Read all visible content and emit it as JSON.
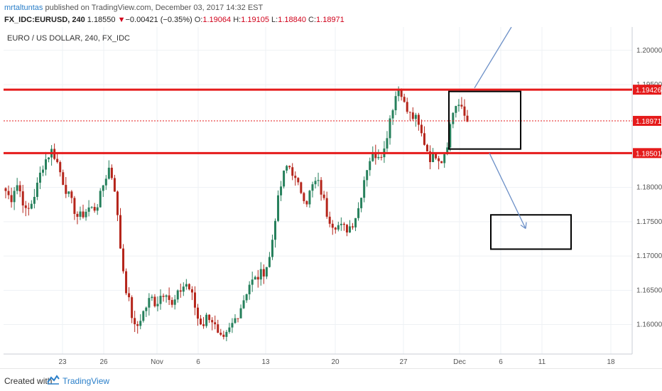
{
  "header": {
    "username": "mrtaltuntas",
    "published_text": " published on TradingView.com, December 03, 2017 14:32 EST",
    "symbol": "FX_IDC:EURUSD, 240",
    "price": "1.18550",
    "change_arrow": "▼",
    "change": "−0.00421 (−0.35%)",
    "open_label": "O:",
    "open": "1.19064",
    "high_label": "H:",
    "high": "1.19105",
    "low_label": "L:",
    "low": "1.18840",
    "close_label": "C:",
    "close": "1.18971"
  },
  "instrument_label": "EURO / US DOLLAR, 240, FX_IDC",
  "footer": {
    "created_with": "Created with",
    "brand": "TradingView"
  },
  "colors": {
    "up": "#26805c",
    "down": "#b5251b",
    "hline": "#e51b1b",
    "annotation": "#6b8fc7",
    "box": "#000000",
    "grid": "#eef1f4"
  },
  "chart_data": {
    "type": "candlestick",
    "title": "EURO / US DOLLAR, 240, FX_IDC",
    "x_tick_labels": [
      "23",
      "26",
      "Nov",
      "6",
      "13",
      "20",
      "27",
      "Dec",
      "6",
      "11",
      "18"
    ],
    "y_tick_labels": [
      "1.20000",
      "1.19500",
      "1.18500",
      "1.18000",
      "1.17500",
      "1.17000",
      "1.16500",
      "1.16000"
    ],
    "ylim": [
      1.1557,
      1.2034
    ],
    "grid": true,
    "price_labels": [
      {
        "text": "1.19426",
        "value": 1.19426,
        "color": "#e51b1b"
      },
      {
        "text": "1.18971",
        "value": 1.18971,
        "color": "#e51b1b"
      },
      {
        "text": "1.18501",
        "value": 1.18501,
        "color": "#e51b1b"
      }
    ],
    "horizontal_lines": [
      {
        "value": 1.19426,
        "style": "solid"
      },
      {
        "value": 1.18501,
        "style": "solid"
      },
      {
        "value": 1.18971,
        "style": "dotted"
      }
    ],
    "annotations": {
      "upper_box": {
        "price_top": 1.194,
        "price_bottom": 1.1856
      },
      "lower_box": {
        "price_top": 1.176,
        "price_bottom": 1.171
      },
      "arrow_up_from": 1.1945,
      "arrow_down_to": 1.174
    },
    "anchors": [
      {
        "v": 1.1795
      },
      {
        "v": 1.1782
      },
      {
        "v": 1.1808
      },
      {
        "v": 1.179
      },
      {
        "v": 1.176
      },
      {
        "v": 1.1778
      },
      {
        "v": 1.18
      },
      {
        "v": 1.183
      },
      {
        "v": 1.1845
      },
      {
        "v": 1.1855
      },
      {
        "v": 1.1835
      },
      {
        "v": 1.181
      },
      {
        "v": 1.179
      },
      {
        "v": 1.1772
      },
      {
        "v": 1.1755
      },
      {
        "v": 1.1762
      },
      {
        "v": 1.177
      },
      {
        "v": 1.1768
      },
      {
        "v": 1.178
      },
      {
        "v": 1.181
      },
      {
        "v": 1.183
      },
      {
        "v": 1.18
      },
      {
        "v": 1.172
      },
      {
        "v": 1.166
      },
      {
        "v": 1.1625
      },
      {
        "v": 1.159
      },
      {
        "v": 1.161
      },
      {
        "v": 1.1625
      },
      {
        "v": 1.164
      },
      {
        "v": 1.163
      },
      {
        "v": 1.1645
      },
      {
        "v": 1.165
      },
      {
        "v": 1.1625
      },
      {
        "v": 1.164
      },
      {
        "v": 1.1655
      },
      {
        "v": 1.166
      },
      {
        "v": 1.164
      },
      {
        "v": 1.161
      },
      {
        "v": 1.16
      },
      {
        "v": 1.1615
      },
      {
        "v": 1.1605
      },
      {
        "v": 1.158
      },
      {
        "v": 1.1575
      },
      {
        "v": 1.159
      },
      {
        "v": 1.1605
      },
      {
        "v": 1.162
      },
      {
        "v": 1.164
      },
      {
        "v": 1.166
      },
      {
        "v": 1.1665
      },
      {
        "v": 1.1672
      },
      {
        "v": 1.168
      },
      {
        "v": 1.17
      },
      {
        "v": 1.176
      },
      {
        "v": 1.18
      },
      {
        "v": 1.183
      },
      {
        "v": 1.183
      },
      {
        "v": 1.1805
      },
      {
        "v": 1.1795
      },
      {
        "v": 1.178
      },
      {
        "v": 1.18
      },
      {
        "v": 1.181
      },
      {
        "v": 1.179
      },
      {
        "v": 1.176
      },
      {
        "v": 1.1748
      },
      {
        "v": 1.1745
      },
      {
        "v": 1.174
      },
      {
        "v": 1.174
      },
      {
        "v": 1.175
      },
      {
        "v": 1.177
      },
      {
        "v": 1.181
      },
      {
        "v": 1.184
      },
      {
        "v": 1.1848
      },
      {
        "v": 1.185
      },
      {
        "v": 1.1855
      },
      {
        "v": 1.19
      },
      {
        "v": 1.193
      },
      {
        "v": 1.195
      },
      {
        "v": 1.1915
      },
      {
        "v": 1.1905
      },
      {
        "v": 1.19
      },
      {
        "v": 1.188
      },
      {
        "v": 1.186
      },
      {
        "v": 1.184
      },
      {
        "v": 1.185
      },
      {
        "v": 1.184
      },
      {
        "v": 1.186
      },
      {
        "v": 1.1905
      },
      {
        "v": 1.1925
      },
      {
        "v": 1.191
      },
      {
        "v": 1.1897
      }
    ]
  }
}
